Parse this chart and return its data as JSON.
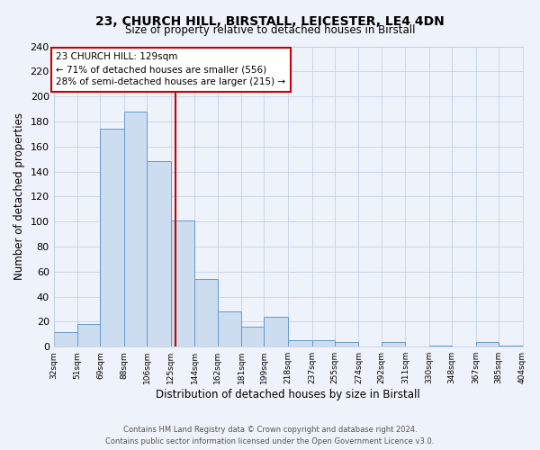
{
  "title": "23, CHURCH HILL, BIRSTALL, LEICESTER, LE4 4DN",
  "subtitle": "Size of property relative to detached houses in Birstall",
  "xlabel": "Distribution of detached houses by size in Birstall",
  "ylabel": "Number of detached properties",
  "bin_edges": [
    32,
    51,
    69,
    88,
    106,
    125,
    144,
    162,
    181,
    199,
    218,
    237,
    255,
    274,
    292,
    311,
    330,
    348,
    367,
    385,
    404
  ],
  "bin_labels": [
    "32sqm",
    "51sqm",
    "69sqm",
    "88sqm",
    "106sqm",
    "125sqm",
    "144sqm",
    "162sqm",
    "181sqm",
    "199sqm",
    "218sqm",
    "237sqm",
    "255sqm",
    "274sqm",
    "292sqm",
    "311sqm",
    "330sqm",
    "348sqm",
    "367sqm",
    "385sqm",
    "404sqm"
  ],
  "counts": [
    12,
    18,
    174,
    188,
    148,
    101,
    54,
    28,
    16,
    24,
    5,
    5,
    4,
    0,
    4,
    0,
    1,
    0,
    4,
    1
  ],
  "bar_color": "#ccddf0",
  "bar_edge_color": "#6699cc",
  "marker_value": 129,
  "marker_color": "#cc0000",
  "annotation_title": "23 CHURCH HILL: 129sqm",
  "annotation_line1": "← 71% of detached houses are smaller (556)",
  "annotation_line2": "28% of semi-detached houses are larger (215) →",
  "annotation_box_color": "#ffffff",
  "annotation_box_edge": "#cc0000",
  "ylim": [
    0,
    240
  ],
  "yticks": [
    0,
    20,
    40,
    60,
    80,
    100,
    120,
    140,
    160,
    180,
    200,
    220,
    240
  ],
  "footer1": "Contains HM Land Registry data © Crown copyright and database right 2024.",
  "footer2": "Contains public sector information licensed under the Open Government Licence v3.0.",
  "bg_color": "#eef2fa",
  "grid_color": "#c0cce0"
}
